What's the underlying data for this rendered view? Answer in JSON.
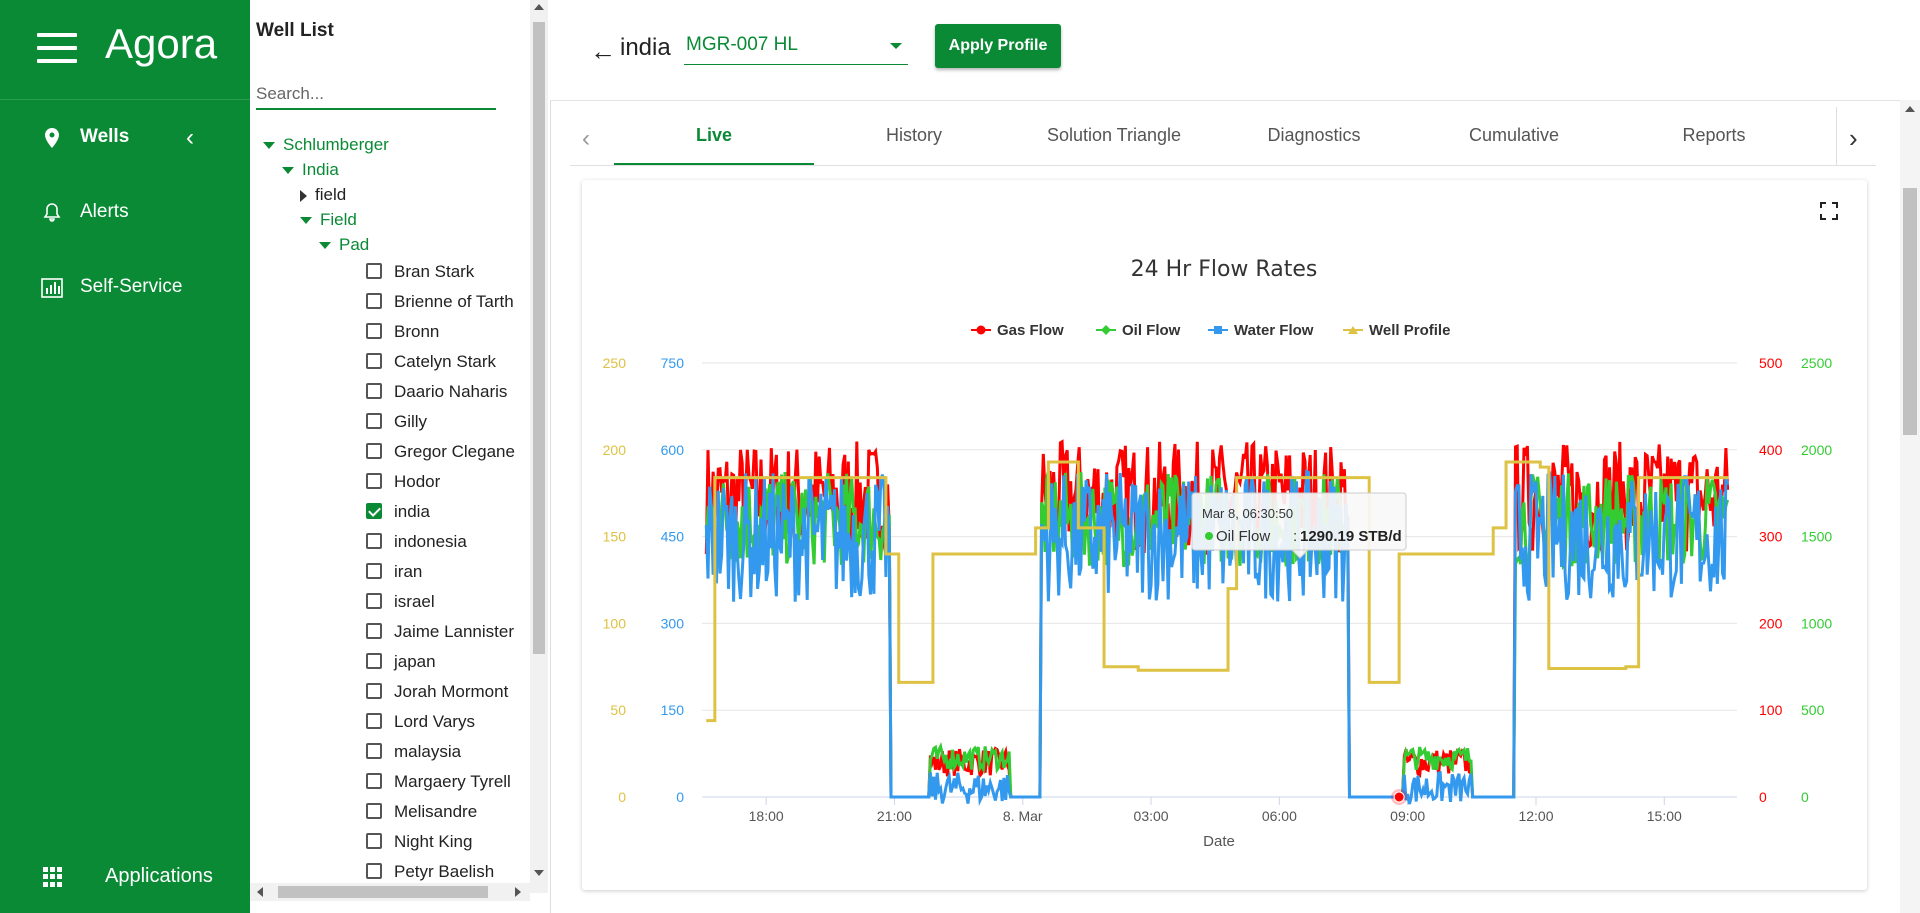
{
  "nav": {
    "brand": "Agora",
    "items": [
      {
        "label": "Wells",
        "icon": "map-pin-icon"
      },
      {
        "label": "Alerts",
        "icon": "bell-icon"
      },
      {
        "label": "Self-Service",
        "icon": "bar-chart-icon"
      }
    ],
    "applications_label": "Applications"
  },
  "well_panel": {
    "title": "Well List",
    "search_placeholder": "Search...",
    "tree": {
      "company": "Schlumberger",
      "country": "India",
      "field_collapsed": "field",
      "field": "Field",
      "pad": "Pad"
    },
    "wells": [
      {
        "name": "Bran Stark",
        "checked": false
      },
      {
        "name": "Brienne of Tarth",
        "checked": false
      },
      {
        "name": "Bronn",
        "checked": false
      },
      {
        "name": "Catelyn Stark",
        "checked": false
      },
      {
        "name": "Daario Naharis",
        "checked": false
      },
      {
        "name": "Gilly",
        "checked": false
      },
      {
        "name": "Gregor Clegane",
        "checked": false
      },
      {
        "name": "Hodor",
        "checked": false
      },
      {
        "name": "india",
        "checked": true
      },
      {
        "name": "indonesia",
        "checked": false
      },
      {
        "name": "iran",
        "checked": false
      },
      {
        "name": "israel",
        "checked": false
      },
      {
        "name": "Jaime Lannister",
        "checked": false
      },
      {
        "name": "japan",
        "checked": false
      },
      {
        "name": "Jorah Mormont",
        "checked": false
      },
      {
        "name": "Lord Varys",
        "checked": false
      },
      {
        "name": "malaysia",
        "checked": false
      },
      {
        "name": "Margaery Tyrell",
        "checked": false
      },
      {
        "name": "Melisandre",
        "checked": false
      },
      {
        "name": "Night King",
        "checked": false
      },
      {
        "name": "Petyr Baelish",
        "checked": false
      }
    ]
  },
  "header": {
    "well_name": "india",
    "profile_value": "MGR-007 HL",
    "apply_label": "Apply Profile"
  },
  "tabs": [
    "Live",
    "History",
    "Solution Triangle",
    "Diagnostics",
    "Cumulative",
    "Reports"
  ],
  "active_tab": "Live",
  "colors": {
    "brand": "#0a8a35",
    "gas": "#ff0000",
    "oil": "#33cc33",
    "water": "#3399ee",
    "profile": "#ddc244"
  },
  "chart_data": {
    "type": "line",
    "title": "24 Hr Flow Rates",
    "xlabel": "Date",
    "x_ticks": [
      "18:00",
      "21:00",
      "8. Mar",
      "03:00",
      "06:00",
      "09:00",
      "12:00",
      "15:00"
    ],
    "x_range_hours": [
      16.5,
      40.7
    ],
    "legend_position": "top-center",
    "axes": {
      "well_profile_axis": {
        "side": "left-outer",
        "ticks": [
          0,
          50,
          100,
          150,
          200,
          250
        ],
        "color": "#ddc244"
      },
      "water_axis": {
        "side": "left-inner",
        "ticks": [
          0,
          150,
          300,
          450,
          600,
          750
        ],
        "color": "#3399ee"
      },
      "gas_axis": {
        "side": "right-inner",
        "ticks": [
          0,
          100,
          200,
          300,
          400,
          500
        ],
        "color": "#ff0000"
      },
      "oil_axis": {
        "side": "right-outer",
        "ticks": [
          0,
          500,
          1000,
          1500,
          2000,
          2500
        ],
        "color": "#33cc33"
      }
    },
    "series": [
      {
        "name": "Gas Flow",
        "color": "#ff0000",
        "axis": "gas_axis"
      },
      {
        "name": "Oil Flow",
        "color": "#33cc33",
        "axis": "oil_axis"
      },
      {
        "name": "Water Flow",
        "color": "#3399ee",
        "axis": "water_axis"
      },
      {
        "name": "Well Profile",
        "color": "#ddc244",
        "axis": "well_profile_axis",
        "steps": [
          [
            16.6,
            44
          ],
          [
            16.8,
            184
          ],
          [
            20.8,
            140
          ],
          [
            21.1,
            66
          ],
          [
            21.9,
            140
          ],
          [
            24.1,
            140
          ],
          [
            24.3,
            155
          ],
          [
            24.6,
            193
          ],
          [
            25.3,
            155
          ],
          [
            25.9,
            75
          ],
          [
            26.7,
            73
          ],
          [
            28.8,
            120
          ],
          [
            29.0,
            184
          ],
          [
            31.5,
            184
          ],
          [
            32.1,
            66
          ],
          [
            32.8,
            140
          ],
          [
            34.7,
            140
          ],
          [
            35.0,
            155
          ],
          [
            35.3,
            193
          ],
          [
            36.1,
            190
          ],
          [
            36.3,
            74
          ],
          [
            38.1,
            75
          ],
          [
            38.4,
            184
          ],
          [
            40.5,
            184
          ]
        ]
      }
    ],
    "tooltip": {
      "time": "Mar 8, 06:30:50",
      "series": "Oil Flow",
      "value_text": "1290.19 STB/d"
    }
  }
}
